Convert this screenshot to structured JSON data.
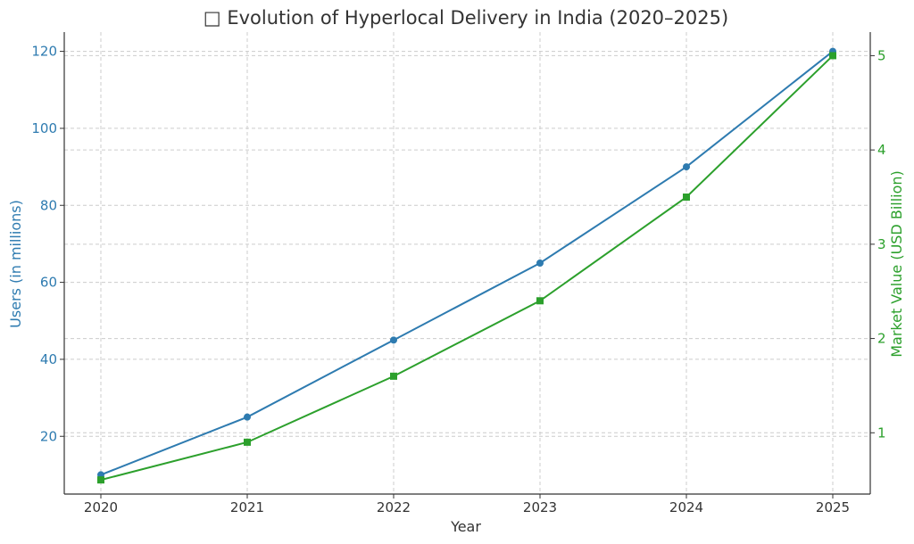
{
  "chart_data": {
    "type": "line",
    "title": "□ Evolution of Hyperlocal Delivery in India (2020–2025)",
    "xlabel": "Year",
    "ylabel_left": "Users (in millions)",
    "ylabel_right": "Market Value (USD Billion)",
    "categories": [
      "2020",
      "2021",
      "2022",
      "2023",
      "2024",
      "2025"
    ],
    "ylim_left": [
      5,
      125
    ],
    "yticks_left": [
      20,
      40,
      60,
      80,
      100,
      120
    ],
    "ylim_right": [
      0.35,
      5.25
    ],
    "yticks_right": [
      1,
      2,
      3,
      4,
      5
    ],
    "grid": true,
    "series": [
      {
        "name": "Users (in millions)",
        "axis": "left",
        "color": "#2e7bb0",
        "marker": "circle",
        "values": [
          10,
          25,
          45,
          65,
          90,
          120
        ]
      },
      {
        "name": "Market Value (USD Billion)",
        "axis": "right",
        "color": "#2ca02c",
        "marker": "square",
        "values": [
          0.5,
          0.9,
          1.6,
          2.4,
          3.5,
          5.0
        ]
      }
    ]
  }
}
